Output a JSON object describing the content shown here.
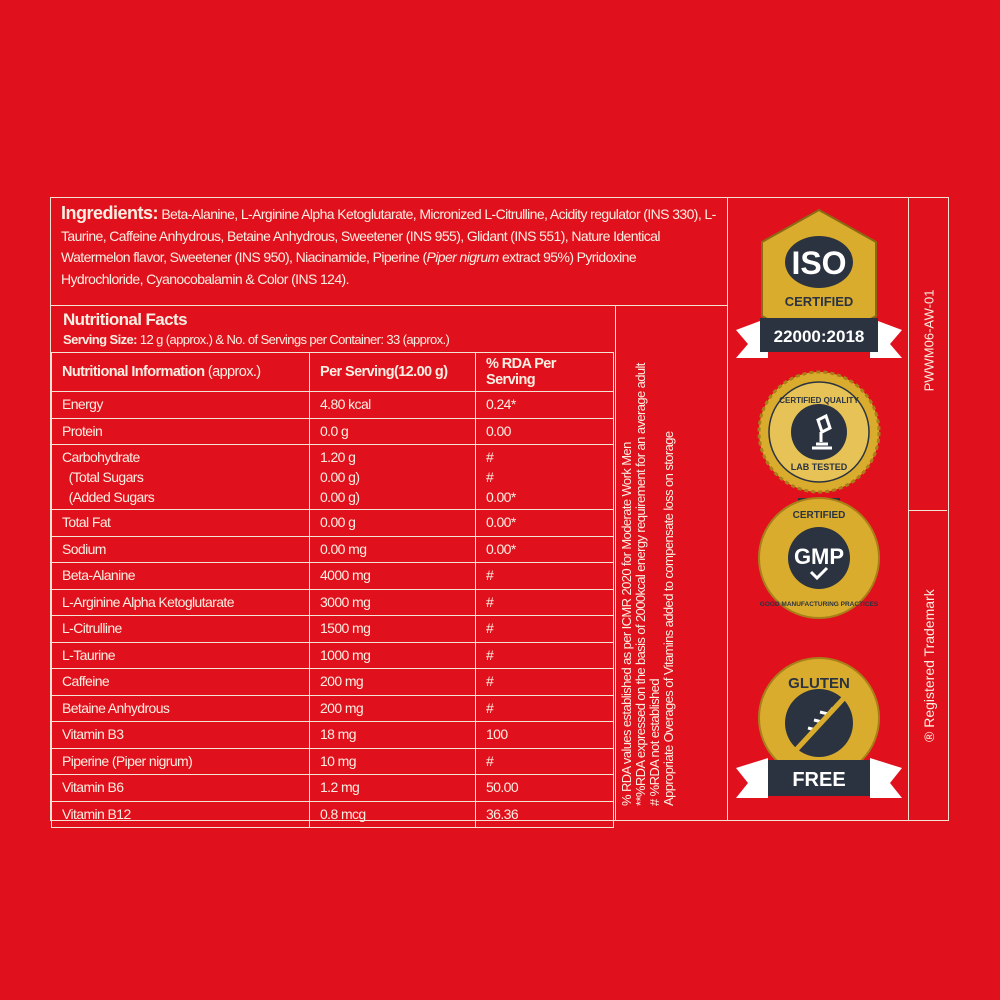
{
  "ingredients": {
    "label": "Ingredients:",
    "text_1": "Beta-Alanine, L-Arginine Alpha Ketoglutarate, Micronized L-Citrulline, Acidity regulator (INS 330), L-Taurine, Caffeine Anhydrous, Betaine Anhydrous, Sweetener (INS 955), Glidant (INS 551), Nature Identical Watermelon flavor, Sweetener (INS 950), Niacinamide, Piperine (",
    "text_italic": "Piper nigrum",
    "text_2": " extract 95%) Pyridoxine Hydrochloride, Cyanocobalamin & Color (INS 124)."
  },
  "facts": {
    "title": "Nutritional Facts",
    "serving_label": "Serving Size:",
    "serving_text": " 12 g (approx.) & No. of Servings per Container: 33 (approx.)",
    "headers": {
      "c0_bold": "Nutritional Information",
      "c0_normal": " (approx.)",
      "c1": "Per Serving(12.00 g)",
      "c2": "% RDA Per Serving"
    },
    "rows": [
      {
        "name": "Energy",
        "per": "4.80 kcal",
        "rda": "0.24*"
      },
      {
        "name": "Protein",
        "per": "0.0 g",
        "rda": "0.00"
      },
      {
        "name": "Carbohydrate\n  (Total Sugars\n  (Added Sugars",
        "per": "1.20 g\n0.00 g)\n0.00 g)",
        "rda": "#\n#\n0.00*"
      },
      {
        "name": "Total Fat",
        "per": "0.00 g",
        "rda": "0.00*"
      },
      {
        "name": "Sodium",
        "per": "0.00 mg",
        "rda": "0.00*"
      },
      {
        "name": "Beta-Alanine",
        "per": "4000 mg",
        "rda": "#"
      },
      {
        "name": "L-Arginine Alpha Ketoglutarate",
        "per": "3000 mg",
        "rda": "#"
      },
      {
        "name": "L-Citrulline",
        "per": "1500 mg",
        "rda": "#"
      },
      {
        "name": "L-Taurine",
        "per": "1000 mg",
        "rda": "#"
      },
      {
        "name": "Caffeine",
        "per": "200 mg",
        "rda": "#"
      },
      {
        "name": "Betaine Anhydrous",
        "per": "200 mg",
        "rda": "#"
      },
      {
        "name": "Vitamin B3",
        "per": "18 mg",
        "rda": "100"
      },
      {
        "name": "Piperine (Piper nigrum)",
        "per": "10 mg",
        "rda": "#"
      },
      {
        "name": "Vitamin B6",
        "per": "1.2 mg",
        "rda": "50.00"
      },
      {
        "name": "Vitamin B12",
        "per": "0.8 mcg",
        "rda": "36.36"
      }
    ]
  },
  "notes": [
    "% RDA values established as per ICMR 2020 for Moderate Work Men",
    "**%RDA expressed on the basis of 2000kcal energy requirement for an average adult",
    "# %RDA not established",
    "Appropriate Overages of Vitamins added to compensate loss on storage"
  ],
  "badges": {
    "iso": {
      "top": "ISO",
      "arc": "CERTIFIED",
      "ribbon": "22000:2018"
    },
    "lab": {
      "top": "CERTIFIED QUALITY",
      "bottom": "LAB TESTED"
    },
    "gmp": {
      "top": "CERTIFIED",
      "center": "GMP",
      "bottom": "GOOD MANUFACTURING PRACTICES"
    },
    "gluten": {
      "top": "GLUTEN",
      "ribbon": "FREE"
    },
    "colors": {
      "gold": "#d9ac2e",
      "navy": "#2b3340",
      "red": "#e0111d"
    }
  },
  "code": "PWWM06-AW-01",
  "trademark": "® Registered Trademark"
}
